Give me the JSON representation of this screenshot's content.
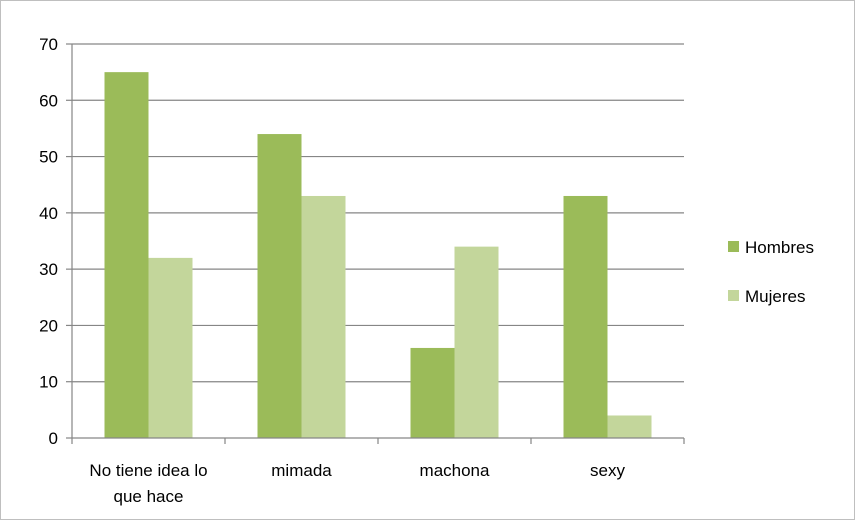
{
  "chart_data": {
    "type": "bar",
    "title": "",
    "xlabel": "",
    "ylabel": "",
    "categories": [
      [
        "No tiene idea lo",
        "que hace"
      ],
      [
        "mimada"
      ],
      [
        "machona"
      ],
      [
        "sexy"
      ]
    ],
    "series": [
      {
        "name": "Hombres",
        "color": "#9bbb59",
        "values": [
          65,
          54,
          16,
          43
        ]
      },
      {
        "name": "Mujeres",
        "color": "#c3d69b",
        "values": [
          32,
          43,
          34,
          4
        ]
      }
    ],
    "ylim": [
      0,
      70
    ],
    "yticks": [
      "0",
      "10",
      "20",
      "30",
      "40",
      "50",
      "60",
      "70"
    ],
    "grid": true,
    "legend_position": "right"
  }
}
